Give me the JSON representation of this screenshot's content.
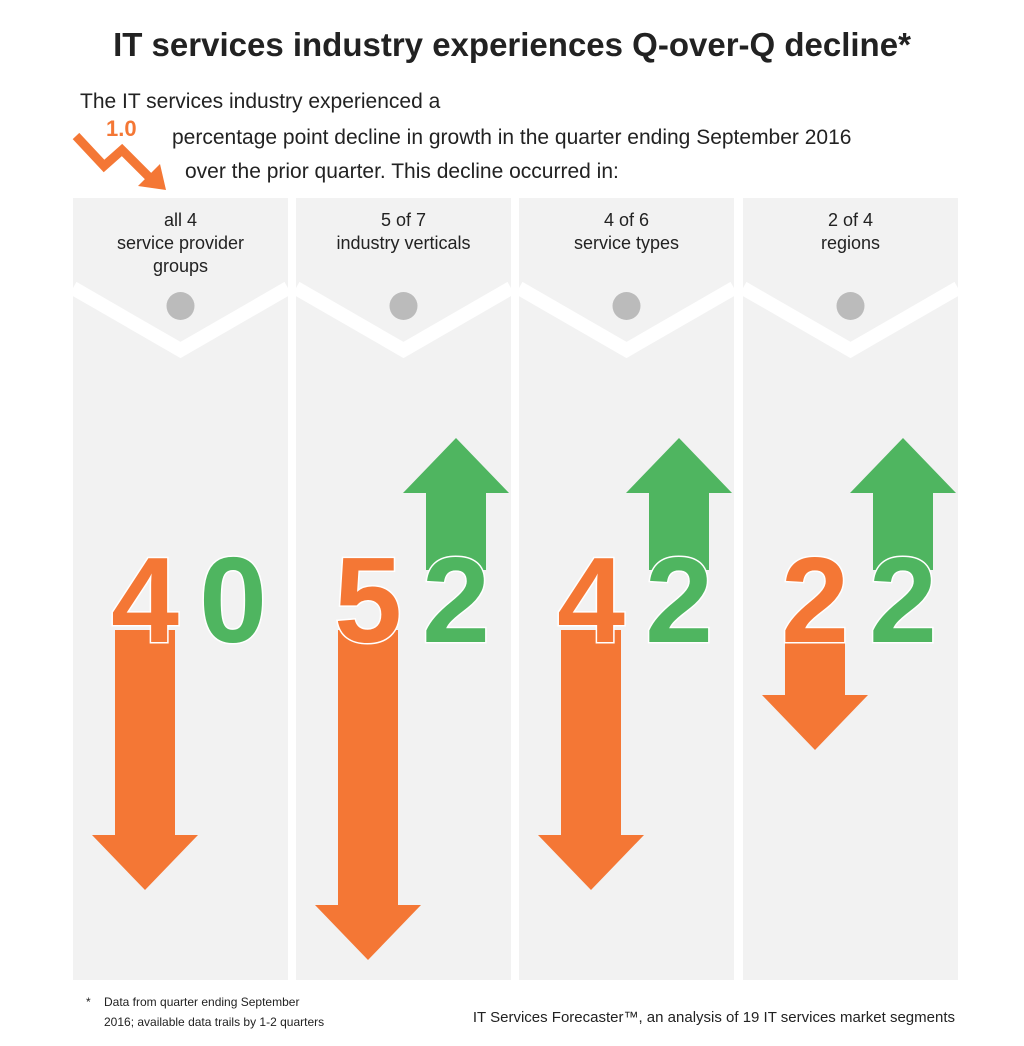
{
  "title": "IT services industry experiences Q-over-Q decline*",
  "intro": {
    "line1": "The IT services industry experienced a",
    "figure": "1.0",
    "line2": "percentage point decline in growth in the quarter ending September 2016",
    "line3": "over the prior quarter. This decline occurred in:"
  },
  "columns": [
    {
      "label_lines": [
        "all 4",
        "service provider",
        "groups"
      ],
      "declined": 4,
      "grew": 0
    },
    {
      "label_lines": [
        "5 of 7",
        "industry verticals"
      ],
      "declined": 5,
      "grew": 2
    },
    {
      "label_lines": [
        "4 of 6",
        "service types"
      ],
      "declined": 4,
      "grew": 2
    },
    {
      "label_lines": [
        "2 of 4",
        "regions"
      ],
      "declined": 2,
      "grew": 2
    }
  ],
  "footnote": {
    "mark": "*",
    "line1": "Data from quarter ending September",
    "line2": "2016; available data trails by  1-2 quarters"
  },
  "source": "IT Services Forecaster™, an analysis of 19 IT services market segments"
}
